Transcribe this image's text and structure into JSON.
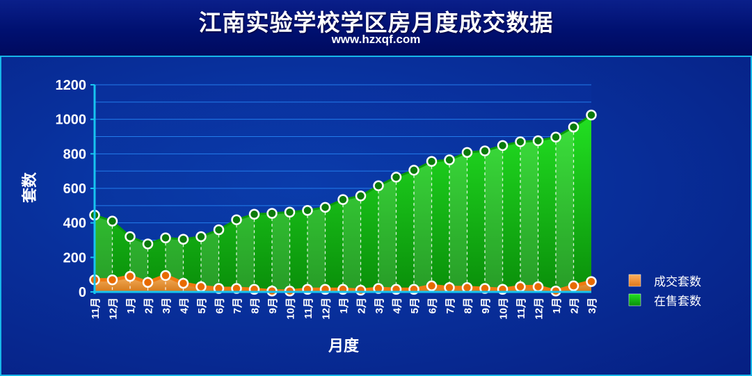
{
  "header": {
    "title": "江南实验学校学区房月度成交数据",
    "subtitle": "www.hzxqf.com"
  },
  "colors": {
    "background": "#061f82",
    "grid": "#1e90ff",
    "sold": "#ff8c1a",
    "for_sale": "#19d119",
    "text": "#ffffff"
  },
  "chart_data": {
    "type": "area",
    "xlabel": "月度",
    "ylabel": "套数",
    "ylim": [
      0,
      1200
    ],
    "yticks": [
      0,
      200,
      400,
      600,
      800,
      1000,
      1200
    ],
    "grid": true,
    "legend_position": "right",
    "categories": [
      "11月",
      "12月",
      "1月",
      "2月",
      "3月",
      "4月",
      "5月",
      "6月",
      "7月",
      "8月",
      "9月",
      "10月",
      "11月",
      "12月",
      "1月",
      "2月",
      "3月",
      "4月",
      "5月",
      "6月",
      "7月",
      "8月",
      "9月",
      "10月",
      "11月",
      "12月",
      "1月",
      "2月",
      "3月"
    ],
    "series": [
      {
        "name": "成交套数",
        "color": "#ff8c1a",
        "values": [
          70,
          70,
          90,
          55,
          95,
          50,
          30,
          20,
          20,
          15,
          5,
          5,
          15,
          15,
          15,
          10,
          20,
          15,
          15,
          35,
          25,
          25,
          20,
          15,
          30,
          30,
          5,
          35,
          60
        ]
      },
      {
        "name": "在售套数",
        "color": "#19d119",
        "values": [
          445,
          410,
          320,
          278,
          313,
          305,
          320,
          360,
          418,
          450,
          455,
          462,
          472,
          490,
          535,
          556,
          615,
          665,
          705,
          756,
          765,
          808,
          817,
          848,
          870,
          876,
          897,
          955,
          1025
        ]
      }
    ]
  }
}
